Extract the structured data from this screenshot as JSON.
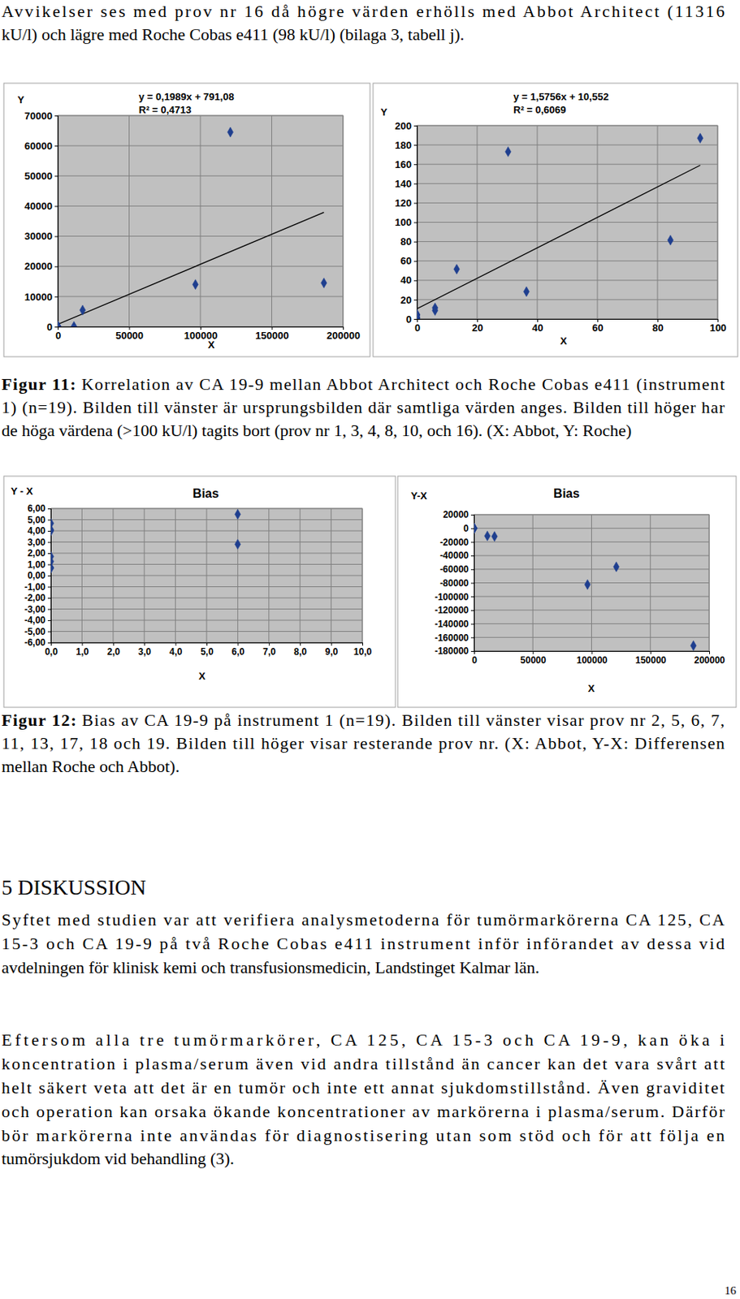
{
  "document": {
    "intro": {
      "lines": [
        "Avvikelser ses med prov nr 16 då högre värden erhölls med Abbot Architect (11316",
        "kU/l) och lägre med Roche Cobas e411 (98 kU/l) (bilaga 3, tabell j)."
      ]
    },
    "figure_11": {
      "label": "Figur 11:",
      "lines": [
        "Korrelation av CA 19-9 mellan Abbot Architect och Roche Cobas e411 (instrument",
        "1) (n=19). Bilden till vänster är ursprungsbilden där samtliga värden anges. Bilden till höger har",
        "de höga värdena (>100 kU/l) tagits bort (prov nr 1, 3, 4, 8, 10, och 16). (X: Abbot, Y: Roche)"
      ]
    },
    "figure_12": {
      "label": "Figur 12:",
      "lines": [
        "Bias av CA 19-9 på instrument 1 (n=19). Bilden till vänster visar prov nr 2, 5, 6, 7,",
        "11, 13, 17, 18 och 19. Bilden till höger visar resterande prov nr. (X: Abbot, Y-X: Differensen",
        "mellan Roche och Abbot)."
      ]
    },
    "heading": "5 DISKUSSION",
    "paragraphs": [
      {
        "lines": [
          "Syftet med studien var att verifiera analysmetoderna för tumörmarkörerna CA 125, CA",
          "15-3 och CA 19-9 på två Roche Cobas e411 instrument inför införandet av dessa vid",
          "avdelningen för klinisk kemi och transfusionsmedicin, Landstinget Kalmar län."
        ]
      },
      {
        "lines": [
          "Eftersom alla tre tumörmarkörer, CA 125, CA 15-3 och CA 19-9, kan öka i",
          "koncentration i plasma/serum även vid andra tillstånd än cancer kan det vara svårt att",
          "helt säkert veta att det är en tumör och inte ett annat sjukdomstillstånd. Även graviditet",
          "och operation kan orsaka ökande koncentrationer av markörerna i plasma/serum. Därför",
          "bör markörerna inte användas för diagnostisering utan som stöd och för att följa en",
          "tumörsjukdom vid behandling (3)."
        ]
      }
    ],
    "page_number": "16"
  },
  "chart_data": [
    {
      "type": "scatter",
      "x_label": "X",
      "y_label": "Y",
      "x": [
        0,
        0,
        0,
        0,
        0,
        0,
        0,
        6,
        6,
        13.2,
        30.3,
        36.4,
        84.3,
        94.2,
        11316,
        17400,
        96500,
        121000,
        186600
      ],
      "values": [
        4.67,
        4.0,
        1.7,
        1.26,
        0.67,
        0.7,
        4.1,
        11.48,
        8.8,
        51.5,
        173,
        28.3,
        81.5,
        187,
        98,
        5500,
        14000,
        64500,
        14500
      ],
      "color": "#1f3f8f",
      "marker": "diamond",
      "grid": true,
      "xlim": [
        0,
        200000
      ],
      "xticks": [
        0,
        50000,
        100000,
        150000,
        200000
      ],
      "ylim": [
        0,
        70000
      ],
      "yticks": [
        0,
        10000,
        20000,
        30000,
        40000,
        50000,
        60000,
        70000
      ],
      "trendline": {
        "slope": 0.1989,
        "intercept": 791.08,
        "equation": "y = 0,1989x + 791,08",
        "r2": "R² = 0,4713"
      }
    },
    {
      "type": "scatter",
      "x_label": "X",
      "y_label": "Y",
      "x": [
        0,
        0,
        0,
        0,
        0,
        0,
        0,
        6,
        6,
        13.2,
        30.3,
        36.4,
        84.3,
        94.2
      ],
      "values": [
        4.67,
        4.0,
        1.7,
        1.26,
        0.67,
        0.7,
        4.1,
        11.48,
        8.8,
        51.5,
        173,
        28.3,
        81.5,
        187
      ],
      "color": "#1f3f8f",
      "marker": "diamond",
      "grid": true,
      "xlim": [
        0,
        100
      ],
      "xticks": [
        0,
        20,
        40,
        60,
        80,
        100
      ],
      "ylim": [
        0,
        200
      ],
      "yticks": [
        0,
        20,
        40,
        60,
        80,
        100,
        120,
        140,
        160,
        180,
        200
      ],
      "trendline": {
        "slope": 1.5756,
        "intercept": 10.552,
        "equation": "y = 1,5756x + 10,552",
        "r2": "R² = 0,6069"
      }
    },
    {
      "type": "scatter",
      "title": "Bias",
      "x_label": "X",
      "y_label": "Y - X",
      "x": [
        0,
        0,
        0,
        0,
        0,
        0,
        0,
        6,
        6
      ],
      "values": [
        4.67,
        4.0,
        1.7,
        1.26,
        0.67,
        0.7,
        4.1,
        5.48,
        2.8
      ],
      "color": "#1f3f8f",
      "marker": "diamond",
      "grid": true,
      "xlim": [
        0,
        10
      ],
      "xticks": [
        {
          "value": 0,
          "label": "0,0"
        },
        {
          "value": 1,
          "label": "1,0"
        },
        {
          "value": 2,
          "label": "2,0"
        },
        {
          "value": 3,
          "label": "3,0"
        },
        {
          "value": 4,
          "label": "4,0"
        },
        {
          "value": 5,
          "label": "5,0"
        },
        {
          "value": 6,
          "label": "6,0"
        },
        {
          "value": 7,
          "label": "7,0"
        },
        {
          "value": 8,
          "label": "8,0"
        },
        {
          "value": 9,
          "label": "9,0"
        },
        {
          "value": 10,
          "label": "10,0"
        }
      ],
      "ylim": [
        -6,
        6
      ],
      "yticks": [
        {
          "value": 6,
          "label": "6,00"
        },
        {
          "value": 5,
          "label": "5,00"
        },
        {
          "value": 4,
          "label": "4,00"
        },
        {
          "value": 3,
          "label": "3,00"
        },
        {
          "value": 2,
          "label": "2,00"
        },
        {
          "value": 1,
          "label": "1,00"
        },
        {
          "value": 0,
          "label": "0,00"
        },
        {
          "value": -1,
          "label": "-1,00"
        },
        {
          "value": -2,
          "label": "-2,00"
        },
        {
          "value": -3,
          "label": "-3,00"
        },
        {
          "value": -4,
          "label": "-4,00"
        },
        {
          "value": -5,
          "label": "-5,00"
        },
        {
          "value": -6,
          "label": "-6,00"
        }
      ]
    },
    {
      "type": "scatter",
      "title": "Bias",
      "x_label": "X",
      "y_label": "Y-X",
      "x": [
        13.2,
        30.3,
        36.4,
        84.3,
        94.2,
        11316,
        17400,
        96500,
        121000,
        186600
      ],
      "values": [
        38.3,
        142.7,
        -8.1,
        -2.8,
        92.8,
        -11218,
        -11900,
        -82500,
        -56500,
        -172100
      ],
      "color": "#1f3f8f",
      "marker": "diamond",
      "grid": true,
      "xlim": [
        0,
        200000
      ],
      "xticks": [
        0,
        50000,
        100000,
        150000,
        200000
      ],
      "ylim": [
        -180000,
        20000
      ],
      "yticks": [
        20000,
        0,
        -20000,
        -40000,
        -60000,
        -80000,
        -100000,
        -120000,
        -140000,
        -160000,
        -180000
      ]
    }
  ]
}
